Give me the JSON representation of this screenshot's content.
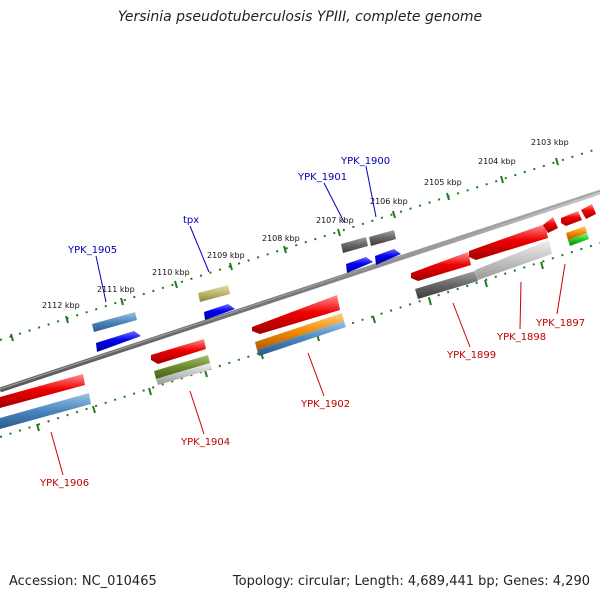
{
  "title": "Yersinia pseudotuberculosis YPIII, complete genome",
  "footer": {
    "accession": "Accession: NC_010465",
    "summary": "Topology: circular; Length: 4,689,441 bp; Genes: 4,290"
  },
  "colors": {
    "backbone": "#808080",
    "ruler": "#1e7a1e",
    "forward_label": "#0000b0",
    "reverse_label": "#c00000"
  },
  "ruler_labels": [
    "2112 kbp",
    "2111 kbp",
    "2110 kbp",
    "2109 kbp",
    "2108 kbp",
    "2107 kbp",
    "2106 kbp",
    "2105 kbp",
    "2104 kbp",
    "2103 kbp"
  ],
  "forward_genes": [
    {
      "id": "YPK_1905",
      "label": "YPK_1905"
    },
    {
      "id": "tpx",
      "label": "tpx"
    },
    {
      "id": "YPK_1901",
      "label": "YPK_1901"
    },
    {
      "id": "YPK_1900",
      "label": "YPK_1900"
    }
  ],
  "reverse_genes": [
    {
      "id": "YPK_1906",
      "label": "YPK_1906"
    },
    {
      "id": "YPK_1904",
      "label": "YPK_1904"
    },
    {
      "id": "YPK_1902",
      "label": "YPK_1902"
    },
    {
      "id": "YPK_1899",
      "label": "YPK_1899"
    },
    {
      "id": "YPK_1898",
      "label": "YPK_1898"
    },
    {
      "id": "YPK_1897",
      "label": "YPK_1897"
    }
  ]
}
